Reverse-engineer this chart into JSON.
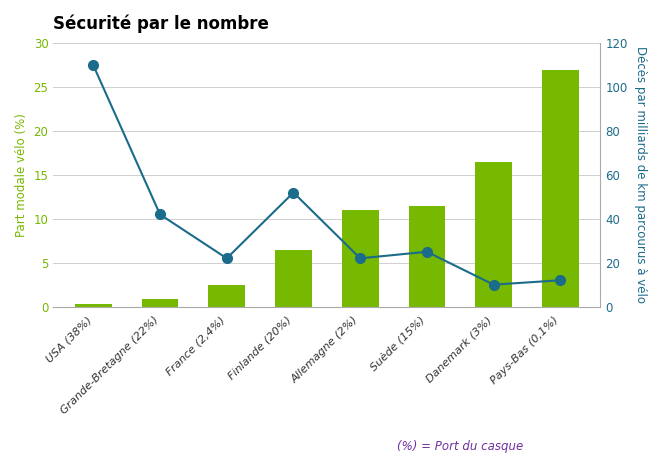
{
  "title": "Sécurité par le nombre",
  "country_names": [
    "USA",
    "Grande-Bretagne",
    "France",
    "Finlande",
    "Allemagne",
    "Suède",
    "Danemark",
    "Pays-Bas"
  ],
  "helmet_pcts": [
    "38%",
    "22%",
    "2,4%",
    "20%",
    "2%",
    "15%",
    "3%",
    "0,1%"
  ],
  "bar_values": [
    0.3,
    0.9,
    2.5,
    6.5,
    11.0,
    11.5,
    16.5,
    27.0
  ],
  "line_values": [
    110,
    42,
    22,
    52,
    22,
    25,
    10,
    12
  ],
  "bar_color": "#77b800",
  "line_color": "#1b6b8a",
  "marker_color": "#1b6b8a",
  "left_ylabel": "Part modale vélo (%)",
  "right_ylabel": "Décès par milliards de km parcourus à vélo",
  "left_ylim": [
    0,
    30
  ],
  "right_ylim": [
    0,
    120
  ],
  "left_yticks": [
    0,
    5,
    10,
    15,
    20,
    25,
    30
  ],
  "right_yticks": [
    0,
    20,
    40,
    60,
    80,
    100,
    120
  ],
  "annotation": "(%) = Port du casque",
  "annotation_color": "#7030a0",
  "background_color": "#ffffff",
  "grid_color": "#d0d0d0",
  "left_tick_color": "#77b800",
  "right_tick_color": "#1b6b8a",
  "country_text_color": "#333333",
  "pct_text_color": "#7030a0"
}
